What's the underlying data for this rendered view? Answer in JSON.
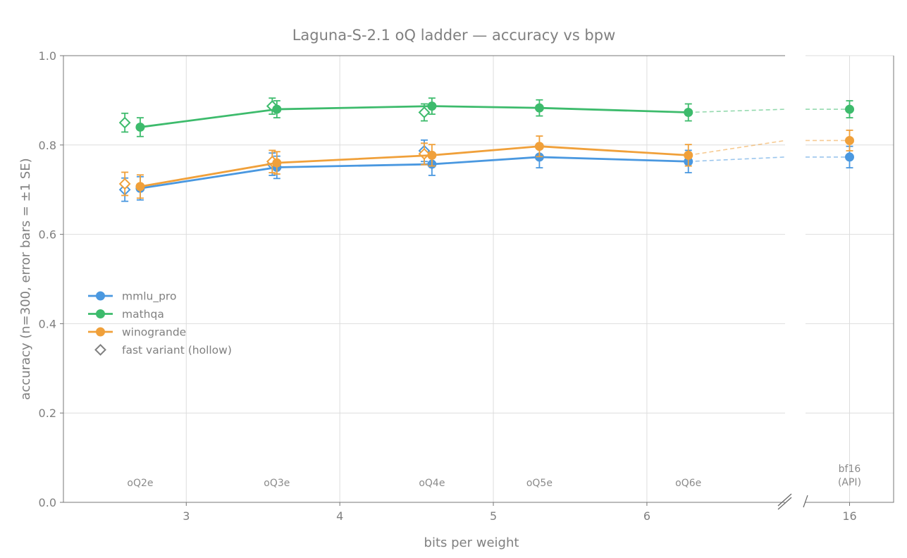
{
  "chart_data": {
    "type": "line",
    "title": "Laguna-S-2.1 oQ ladder — accuracy vs bpw",
    "xlabel": "bits per weight",
    "ylabel": "accuracy (n=300, error bars = ±1 SE)",
    "ylim": [
      0,
      1
    ],
    "yticks": [
      "0.0",
      "0.2",
      "0.4",
      "0.6",
      "0.8",
      "1.0"
    ],
    "xlim_main": [
      2.2,
      6.9
    ],
    "xticks_main": [
      "3",
      "4",
      "5",
      "6"
    ],
    "xlim_broken": [
      15.4,
      16.6
    ],
    "xticks_broken": [
      "16"
    ],
    "grid": true,
    "legend_position": "center-left",
    "quant_labels": [
      {
        "x": 2.7,
        "label": "oQ2e"
      },
      {
        "x": 3.59,
        "label": "oQ3e"
      },
      {
        "x": 4.6,
        "label": "oQ4e"
      },
      {
        "x": 5.3,
        "label": "oQ5e"
      },
      {
        "x": 6.27,
        "label": "oQ6e"
      },
      {
        "x": 16,
        "label": "bf16",
        "label2": "(API)"
      }
    ],
    "series": [
      {
        "name": "mmlu_pro",
        "color": "#4a98e0",
        "x": [
          2.7,
          3.59,
          4.6,
          5.3,
          6.27
        ],
        "y": [
          0.703,
          0.75,
          0.757,
          0.773,
          0.763
        ],
        "se": [
          0.026,
          0.025,
          0.025,
          0.024,
          0.025
        ],
        "reference": {
          "x": 16,
          "y": 0.773,
          "se": 0.024
        },
        "fast": {
          "x": [
            2.6,
            3.56,
            4.55
          ],
          "y": [
            0.7,
            0.757,
            0.787
          ],
          "se": [
            0.026,
            0.025,
            0.024
          ]
        }
      },
      {
        "name": "mathqa",
        "color": "#3dbb6c",
        "x": [
          2.7,
          3.59,
          4.6,
          5.3,
          6.27
        ],
        "y": [
          0.84,
          0.88,
          0.887,
          0.883,
          0.873
        ],
        "se": [
          0.021,
          0.019,
          0.018,
          0.018,
          0.019
        ],
        "reference": {
          "x": 16,
          "y": 0.88,
          "se": 0.019
        },
        "fast": {
          "x": [
            2.6,
            3.56,
            4.55
          ],
          "y": [
            0.85,
            0.887,
            0.873
          ],
          "se": [
            0.021,
            0.018,
            0.019
          ]
        }
      },
      {
        "name": "winogrande",
        "color": "#f0a03a",
        "x": [
          2.7,
          3.59,
          4.6,
          5.3,
          6.27
        ],
        "y": [
          0.707,
          0.76,
          0.777,
          0.797,
          0.777
        ],
        "se": [
          0.026,
          0.025,
          0.024,
          0.023,
          0.024
        ],
        "reference": {
          "x": 16,
          "y": 0.81,
          "se": 0.023
        },
        "fast": {
          "x": [
            2.6,
            3.56,
            4.55
          ],
          "y": [
            0.713,
            0.763,
            0.78
          ],
          "se": [
            0.026,
            0.025,
            0.024
          ]
        }
      }
    ],
    "legend_extra": "fast variant (hollow)",
    "legend_extra_color": "#808080"
  }
}
